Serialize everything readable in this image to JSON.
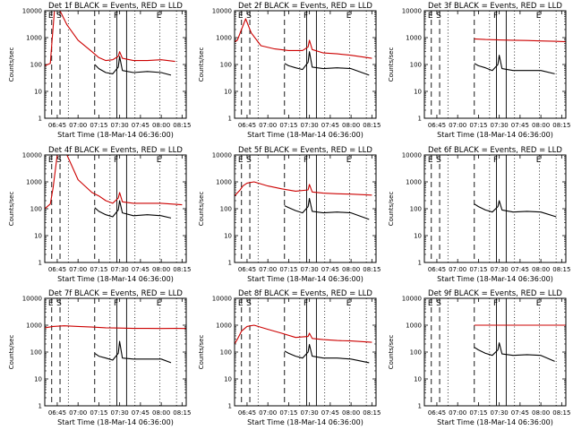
{
  "chart_data": {
    "type": "line",
    "xlabel": "Start Time (18-Mar-14 06:36:00)",
    "ylabel": "Counts/sec",
    "yscale": "log",
    "ylim": [
      1,
      10000
    ],
    "xlim": [
      "06:36",
      "08:18"
    ],
    "x_ticks": [
      "06:45",
      "07:00",
      "07:15",
      "07:30",
      "07:45",
      "08:00",
      "08:15"
    ],
    "y_ticks": [
      "1",
      "10",
      "100",
      "1000",
      "10000"
    ],
    "interval_markers": [
      {
        "label": "E",
        "time": "06:41",
        "style": "dashed"
      },
      {
        "label": "S",
        "time": "06:47",
        "style": "dashed"
      },
      {
        "label": "",
        "time": "07:12",
        "style": "dashed"
      },
      {
        "label": "",
        "time": "06:53",
        "style": "dotted"
      },
      {
        "label": "",
        "time": "07:23",
        "style": "dotted"
      },
      {
        "label": "",
        "time": "07:41",
        "style": "dotted"
      },
      {
        "label": "E",
        "time": "07:59",
        "style": "dotted"
      },
      {
        "label": "",
        "time": "08:11",
        "style": "dotted"
      },
      {
        "label": "F",
        "time": "07:28",
        "style": "solid"
      },
      {
        "label": "",
        "time": "07:35",
        "style": "solid"
      }
    ],
    "panels": [
      {
        "title": "Det 1f BLACK = Events, RED = LLD",
        "series": [
          {
            "color": "#cc0000",
            "x": [
              "06:36",
              "06:40",
              "06:41",
              "06:43",
              "06:47",
              "06:52",
              "07:00",
              "07:10",
              "07:15",
              "07:20",
              "07:25",
              "07:29",
              "07:30",
              "07:32",
              "07:40",
              "07:50",
              "08:00",
              "08:10"
            ],
            "y": [
              90,
              110,
              500,
              10000,
              10000,
              3000,
              800,
              300,
              180,
              140,
              150,
              200,
              300,
              170,
              140,
              140,
              150,
              130
            ]
          },
          {
            "color": "#000000",
            "x": [
              "07:12",
              "07:15",
              "07:20",
              "07:25",
              "07:29",
              "07:30",
              "07:32",
              "07:40",
              "07:50",
              "08:00",
              "08:07"
            ],
            "y": [
              100,
              70,
              50,
              45,
              80,
              200,
              60,
              50,
              55,
              50,
              40
            ]
          }
        ]
      },
      {
        "title": "Det 2f BLACK = Events, RED = LLD",
        "series": [
          {
            "color": "#cc0000",
            "x": [
              "06:36",
              "06:38",
              "06:41",
              "06:44",
              "06:48",
              "06:55",
              "07:05",
              "07:15",
              "07:25",
              "07:29",
              "07:30",
              "07:32",
              "07:40",
              "07:50",
              "08:00",
              "08:15"
            ],
            "y": [
              700,
              800,
              2000,
              5000,
              1500,
              500,
              380,
              330,
              330,
              450,
              800,
              360,
              270,
              250,
              220,
              170
            ]
          },
          {
            "color": "#000000",
            "x": [
              "07:12",
              "07:15",
              "07:20",
              "07:25",
              "07:29",
              "07:30",
              "07:32",
              "07:40",
              "07:50",
              "08:00",
              "08:13"
            ],
            "y": [
              110,
              90,
              75,
              65,
              120,
              300,
              80,
              70,
              75,
              70,
              40
            ]
          }
        ]
      },
      {
        "title": "Det 3f BLACK = Events, RED = LLD",
        "series": [
          {
            "color": "#cc0000",
            "x": [
              "07:12",
              "07:20",
              "07:30",
              "07:40",
              "07:50",
              "08:00",
              "08:10",
              "08:18"
            ],
            "y": [
              900,
              850,
              820,
              800,
              780,
              750,
              730,
              700
            ]
          },
          {
            "color": "#000000",
            "x": [
              "07:12",
              "07:15",
              "07:20",
              "07:25",
              "07:29",
              "07:30",
              "07:32",
              "07:40",
              "07:50",
              "08:00",
              "08:10"
            ],
            "y": [
              110,
              90,
              75,
              60,
              100,
              220,
              70,
              60,
              60,
              60,
              45
            ]
          }
        ]
      },
      {
        "title": "Det 4f BLACK = Events, RED = LLD",
        "series": [
          {
            "color": "#cc0000",
            "x": [
              "06:36",
              "06:40",
              "06:42",
              "06:45",
              "06:52",
              "07:00",
              "07:10",
              "07:15",
              "07:20",
              "07:25",
              "07:29",
              "07:30",
              "07:32",
              "07:40",
              "07:50",
              "08:00",
              "08:15"
            ],
            "y": [
              100,
              150,
              600,
              10000,
              10000,
              1200,
              400,
              300,
              200,
              160,
              250,
              400,
              180,
              160,
              160,
              160,
              140
            ]
          },
          {
            "color": "#000000",
            "x": [
              "07:12",
              "07:15",
              "07:20",
              "07:25",
              "07:29",
              "07:30",
              "07:32",
              "07:40",
              "07:50",
              "08:00",
              "08:07"
            ],
            "y": [
              110,
              80,
              60,
              50,
              90,
              200,
              70,
              55,
              60,
              55,
              45
            ]
          }
        ]
      },
      {
        "title": "Det 5f BLACK = Events, RED = LLD",
        "series": [
          {
            "color": "#cc0000",
            "x": [
              "06:36",
              "06:40",
              "06:42",
              "06:45",
              "06:50",
              "07:00",
              "07:10",
              "07:20",
              "07:29",
              "07:30",
              "07:32",
              "07:40",
              "07:50",
              "08:00",
              "08:15"
            ],
            "y": [
              300,
              500,
              700,
              900,
              1000,
              700,
              550,
              450,
              500,
              800,
              420,
              380,
              360,
              350,
              320
            ]
          },
          {
            "color": "#000000",
            "x": [
              "07:12",
              "07:15",
              "07:20",
              "07:25",
              "07:29",
              "07:30",
              "07:32",
              "07:40",
              "07:50",
              "08:00",
              "08:13"
            ],
            "y": [
              130,
              110,
              85,
              70,
              120,
              240,
              80,
              70,
              75,
              70,
              40
            ]
          }
        ]
      },
      {
        "title": "Det 6f BLACK = Events, RED = LLD",
        "series": [
          {
            "color": "#000000",
            "x": [
              "07:12",
              "07:15",
              "07:20",
              "07:25",
              "07:29",
              "07:30",
              "07:32",
              "07:40",
              "07:50",
              "08:00",
              "08:11"
            ],
            "y": [
              150,
              120,
              90,
              75,
              120,
              200,
              90,
              75,
              80,
              75,
              50
            ]
          }
        ]
      },
      {
        "title": "Det 7f BLACK = Events, RED = LLD",
        "series": [
          {
            "color": "#cc0000",
            "x": [
              "06:36",
              "06:42",
              "06:50",
              "07:00",
              "07:10",
              "07:20",
              "07:30",
              "07:40",
              "07:50",
              "08:00",
              "08:10",
              "08:18"
            ],
            "y": [
              800,
              900,
              950,
              900,
              850,
              800,
              780,
              760,
              760,
              750,
              760,
              750
            ]
          },
          {
            "color": "#000000",
            "x": [
              "07:12",
              "07:15",
              "07:20",
              "07:25",
              "07:29",
              "07:30",
              "07:32",
              "07:40",
              "07:50",
              "08:00",
              "08:07"
            ],
            "y": [
              90,
              70,
              60,
              50,
              90,
              250,
              60,
              55,
              55,
              55,
              40
            ]
          }
        ]
      },
      {
        "title": "Det 8f BLACK = Events, RED = LLD",
        "series": [
          {
            "color": "#cc0000",
            "x": [
              "06:36",
              "06:38",
              "06:41",
              "06:45",
              "06:50",
              "07:00",
              "07:10",
              "07:20",
              "07:29",
              "07:30",
              "07:32",
              "07:40",
              "07:50",
              "08:00",
              "08:15"
            ],
            "y": [
              200,
              300,
              600,
              900,
              1000,
              700,
              500,
              350,
              380,
              500,
              320,
              290,
              270,
              260,
              230
            ]
          },
          {
            "color": "#000000",
            "x": [
              "07:12",
              "07:15",
              "07:20",
              "07:25",
              "07:29",
              "07:30",
              "07:32",
              "07:40",
              "07:50",
              "08:00",
              "08:13"
            ],
            "y": [
              110,
              90,
              70,
              60,
              100,
              190,
              70,
              60,
              60,
              55,
              40
            ]
          }
        ]
      },
      {
        "title": "Det 9f BLACK = Events, RED = LLD",
        "series": [
          {
            "color": "#cc0000",
            "x": [
              "07:12",
              "07:20",
              "07:30",
              "07:40",
              "07:50",
              "08:00",
              "08:10",
              "08:18"
            ],
            "y": [
              1000,
              1000,
              1000,
              1000,
              1000,
              1000,
              1000,
              1000
            ]
          },
          {
            "color": "#000000",
            "x": [
              "07:12",
              "07:15",
              "07:20",
              "07:25",
              "07:29",
              "07:30",
              "07:32",
              "07:40",
              "07:50",
              "08:00",
              "08:10"
            ],
            "y": [
              150,
              120,
              90,
              75,
              120,
              220,
              85,
              75,
              80,
              75,
              45
            ]
          }
        ]
      }
    ]
  }
}
